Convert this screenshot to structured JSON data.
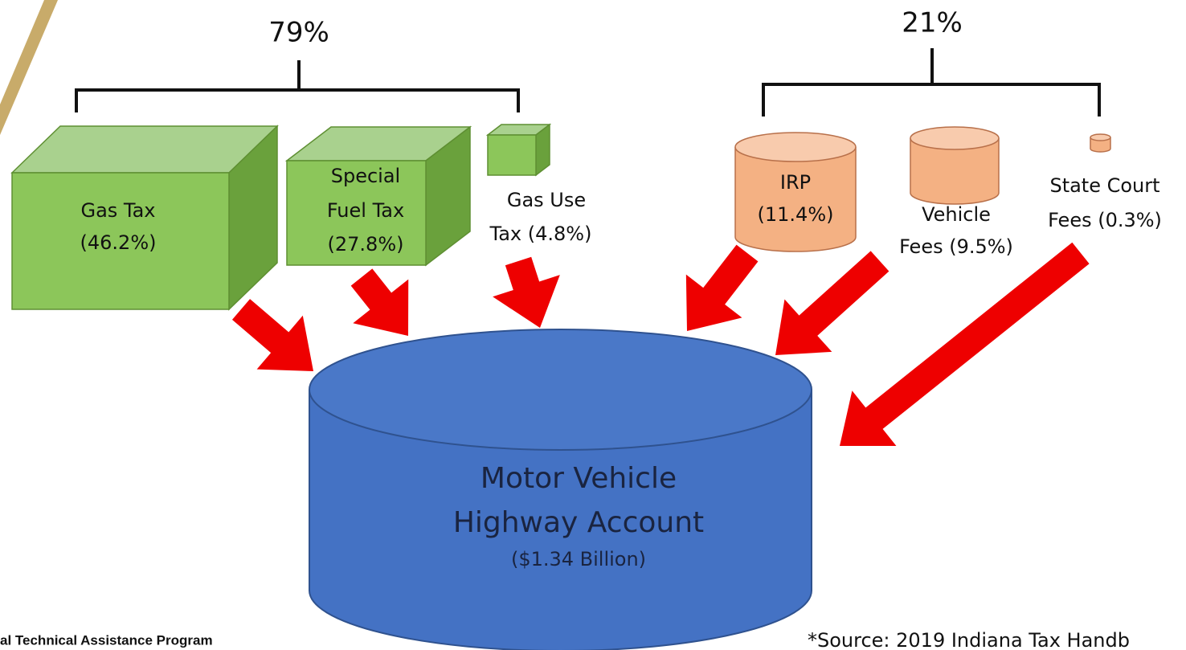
{
  "groups": [
    {
      "label": "79%"
    },
    {
      "label": "21%"
    }
  ],
  "sources": [
    {
      "lines": [
        "Gas Tax",
        "(46.2%)"
      ]
    },
    {
      "lines": [
        "Special",
        "Fuel Tax",
        "(27.8%)"
      ]
    },
    {
      "lines": [
        "Gas Use",
        "Tax (4.8%)"
      ]
    },
    {
      "lines": [
        "IRP",
        "(11.4%)"
      ]
    },
    {
      "lines": [
        "Vehicle",
        "Fees (9.5%)"
      ]
    },
    {
      "lines": [
        "State Court",
        "Fees (0.3%)"
      ]
    }
  ],
  "account": {
    "lines": [
      "Motor Vehicle",
      "Highway Account"
    ],
    "amount": "($1.34 Billion)"
  },
  "footer": {
    "program": "al Technical Assistance Program",
    "source": "*Source: 2019 Indiana Tax Handb"
  }
}
